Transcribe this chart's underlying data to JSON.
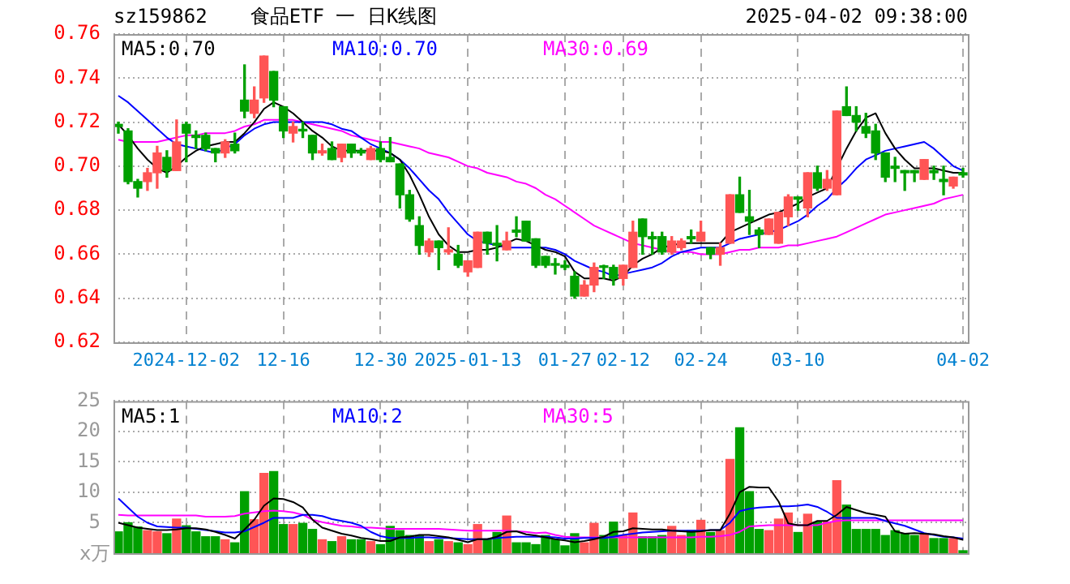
{
  "chart_data": [
    {
      "type": "candlestick",
      "title": "食品ETF 一 日K线图",
      "annotations": [
        "sz159862",
        "2025-04-02 09:38:00"
      ],
      "categories": [
        null,
        null,
        null,
        null,
        null,
        null,
        null,
        "2024-12-02",
        null,
        null,
        null,
        null,
        null,
        null,
        null,
        null,
        null,
        "12-16",
        null,
        null,
        null,
        null,
        null,
        null,
        null,
        null,
        null,
        "12-30",
        null,
        null,
        null,
        null,
        null,
        null,
        null,
        null,
        "2025-01-13",
        null,
        null,
        null,
        null,
        null,
        null,
        null,
        null,
        null,
        "01-27",
        null,
        null,
        null,
        null,
        null,
        "02-12",
        null,
        null,
        null,
        null,
        null,
        null,
        null,
        "02-24",
        null,
        null,
        null,
        null,
        null,
        null,
        null,
        null,
        null,
        "03-10",
        null,
        null,
        null,
        null,
        null,
        null,
        null,
        null,
        null,
        null,
        null,
        null,
        null,
        null,
        null,
        null,
        "04-02"
      ],
      "ohlc": [
        [
          0.719,
          0.72,
          0.715,
          0.718
        ],
        [
          0.716,
          0.717,
          0.692,
          0.693
        ],
        [
          0.693,
          0.694,
          0.686,
          0.69
        ],
        [
          0.693,
          0.699,
          0.689,
          0.697
        ],
        [
          0.697,
          0.709,
          0.69,
          0.706
        ],
        [
          0.704,
          0.707,
          0.695,
          0.698
        ],
        [
          0.698,
          0.721,
          0.698,
          0.711
        ],
        [
          0.719,
          0.72,
          0.702,
          0.715
        ],
        [
          0.714,
          0.716,
          0.708,
          0.713
        ],
        [
          0.714,
          0.715,
          0.707,
          0.708
        ],
        [
          0.708,
          0.708,
          0.702,
          0.706
        ],
        [
          0.706,
          0.712,
          0.704,
          0.711
        ],
        [
          0.71,
          0.715,
          0.706,
          0.707
        ],
        [
          0.73,
          0.746,
          0.722,
          0.725
        ],
        [
          0.724,
          0.736,
          0.722,
          0.73
        ],
        [
          0.731,
          0.75,
          0.729,
          0.75
        ],
        [
          0.743,
          0.743,
          0.727,
          0.73
        ],
        [
          0.727,
          0.727,
          0.713,
          0.716
        ],
        [
          0.715,
          0.72,
          0.711,
          0.718
        ],
        [
          0.716,
          0.72,
          0.713,
          0.716
        ],
        [
          0.714,
          0.714,
          0.703,
          0.706
        ],
        [
          0.706,
          0.71,
          0.705,
          0.707
        ],
        [
          0.708,
          0.711,
          0.703,
          0.703
        ],
        [
          0.704,
          0.71,
          0.702,
          0.71
        ],
        [
          0.71,
          0.71,
          0.704,
          0.706
        ],
        [
          0.707,
          0.708,
          0.705,
          0.706
        ],
        [
          0.703,
          0.709,
          0.703,
          0.708
        ],
        [
          0.708,
          0.711,
          0.702,
          0.703
        ],
        [
          0.704,
          0.713,
          0.702,
          0.702
        ],
        [
          0.701,
          0.701,
          0.681,
          0.687
        ],
        [
          0.687,
          0.689,
          0.675,
          0.676
        ],
        [
          0.673,
          0.677,
          0.66,
          0.664
        ],
        [
          0.661,
          0.667,
          0.659,
          0.666
        ],
        [
          0.666,
          0.666,
          0.653,
          0.663
        ],
        [
          0.661,
          0.672,
          0.66,
          0.662
        ],
        [
          0.66,
          0.664,
          0.654,
          0.655
        ],
        [
          0.652,
          0.657,
          0.65,
          0.657
        ],
        [
          0.654,
          0.67,
          0.654,
          0.67
        ],
        [
          0.67,
          0.67,
          0.66,
          0.665
        ],
        [
          0.665,
          0.673,
          0.657,
          0.664
        ],
        [
          0.662,
          0.67,
          0.662,
          0.666
        ],
        [
          0.671,
          0.677,
          0.668,
          0.67
        ],
        [
          0.675,
          0.675,
          0.666,
          0.666
        ],
        [
          0.667,
          0.667,
          0.654,
          0.655
        ],
        [
          0.659,
          0.659,
          0.654,
          0.655
        ],
        [
          0.655,
          0.658,
          0.651,
          0.655
        ],
        [
          0.655,
          0.657,
          0.653,
          0.654
        ],
        [
          0.65,
          0.652,
          0.64,
          0.641
        ],
        [
          0.641,
          0.648,
          0.641,
          0.646
        ],
        [
          0.646,
          0.656,
          0.643,
          0.654
        ],
        [
          0.654,
          0.655,
          0.649,
          0.654
        ],
        [
          0.654,
          0.655,
          0.646,
          0.649
        ],
        [
          0.649,
          0.655,
          0.646,
          0.655
        ],
        [
          0.654,
          0.675,
          0.654,
          0.67
        ],
        [
          0.676,
          0.676,
          0.66,
          0.668
        ],
        [
          0.668,
          0.67,
          0.66,
          0.667
        ],
        [
          0.668,
          0.67,
          0.66,
          0.661
        ],
        [
          0.661,
          0.668,
          0.66,
          0.666
        ],
        [
          0.663,
          0.667,
          0.662,
          0.666
        ],
        [
          0.668,
          0.671,
          0.665,
          0.667
        ],
        [
          0.666,
          0.675,
          0.666,
          0.67
        ],
        [
          0.663,
          0.663,
          0.658,
          0.66
        ],
        [
          0.66,
          0.665,
          0.655,
          0.663
        ],
        [
          0.665,
          0.687,
          0.665,
          0.687
        ],
        [
          0.687,
          0.695,
          0.679,
          0.679
        ],
        [
          0.677,
          0.689,
          0.669,
          0.675
        ],
        [
          0.671,
          0.672,
          0.663,
          0.669
        ],
        [
          0.669,
          0.676,
          0.669,
          0.676
        ],
        [
          0.665,
          0.679,
          0.665,
          0.679
        ],
        [
          0.677,
          0.687,
          0.673,
          0.686
        ],
        [
          0.686,
          0.686,
          0.68,
          0.685
        ],
        [
          0.681,
          0.697,
          0.677,
          0.697
        ],
        [
          0.697,
          0.7,
          0.689,
          0.69
        ],
        [
          0.69,
          0.698,
          0.689,
          0.694
        ],
        [
          0.687,
          0.725,
          0.687,
          0.725
        ],
        [
          0.727,
          0.736,
          0.723,
          0.723
        ],
        [
          0.723,
          0.727,
          0.716,
          0.72
        ],
        [
          0.718,
          0.724,
          0.713,
          0.715
        ],
        [
          0.716,
          0.719,
          0.703,
          0.706
        ],
        [
          0.706,
          0.706,
          0.693,
          0.695
        ],
        [
          0.7,
          0.704,
          0.693,
          0.699
        ],
        [
          0.698,
          0.698,
          0.689,
          0.697
        ],
        [
          0.698,
          0.698,
          0.693,
          0.697
        ],
        [
          0.694,
          0.703,
          0.694,
          0.703
        ],
        [
          0.698,
          0.7,
          0.694,
          0.697
        ],
        [
          0.694,
          0.7,
          0.687,
          0.693
        ],
        [
          0.691,
          0.695,
          0.69,
          0.695
        ],
        [
          0.697,
          0.699,
          0.695,
          0.696
        ]
      ],
      "colors": [
        "#00a000",
        "#00a000",
        "#00a000",
        "#ff5555",
        "#ff5555",
        "#00a000",
        "#ff5555",
        "#00a000",
        "#00a000",
        "#00a000",
        "#00a000",
        "#ff5555",
        "#00a000",
        "#00a000",
        "#ff5555",
        "#ff5555",
        "#00a000",
        "#00a000",
        "#ff5555",
        "#00a000",
        "#00a000",
        "#ff5555",
        "#00a000",
        "#ff5555",
        "#00a000",
        "#00a000",
        "#ff5555",
        "#00a000",
        "#00a000",
        "#00a000",
        "#00a000",
        "#00a000",
        "#ff5555",
        "#00a000",
        "#ff5555",
        "#00a000",
        "#ff5555",
        "#ff5555",
        "#00a000",
        "#00a000",
        "#ff5555",
        "#00a000",
        "#00a000",
        "#00a000",
        "#00a000",
        "#00a000",
        "#00a000",
        "#00a000",
        "#ff5555",
        "#ff5555",
        "#00a000",
        "#00a000",
        "#ff5555",
        "#ff5555",
        "#00a000",
        "#00a000",
        "#00a000",
        "#ff5555",
        "#ff5555",
        "#00a000",
        "#ff5555",
        "#00a000",
        "#ff5555",
        "#ff5555",
        "#00a000",
        "#00a000",
        "#00a000",
        "#ff5555",
        "#ff5555",
        "#ff5555",
        "#00a000",
        "#ff5555",
        "#00a000",
        "#ff5555",
        "#ff5555",
        "#00a000",
        "#00a000",
        "#00a000",
        "#00a000",
        "#00a000",
        "#00a000",
        "#00a000",
        "#00a000",
        "#ff5555",
        "#00a000",
        "#00a000",
        "#ff5555",
        "#00a000"
      ],
      "series": [
        {
          "name": "MA5:0.70",
          "type": "line",
          "color": "#000000",
          "values": [
            0.719,
            0.714,
            0.708,
            0.703,
            0.699,
            0.697,
            0.7,
            0.704,
            0.707,
            0.709,
            0.71,
            0.711,
            0.711,
            0.715,
            0.72,
            0.726,
            0.729,
            0.727,
            0.724,
            0.72,
            0.716,
            0.713,
            0.709,
            0.707,
            0.707,
            0.707,
            0.707,
            0.707,
            0.706,
            0.703,
            0.696,
            0.687,
            0.677,
            0.669,
            0.664,
            0.661,
            0.661,
            0.662,
            0.662,
            0.663,
            0.665,
            0.667,
            0.666,
            0.664,
            0.662,
            0.661,
            0.659,
            0.652,
            0.649,
            0.649,
            0.649,
            0.648,
            0.65,
            0.655,
            0.658,
            0.66,
            0.663,
            0.664,
            0.665,
            0.665,
            0.665,
            0.665,
            0.665,
            0.67,
            0.672,
            0.674,
            0.676,
            0.678,
            0.679,
            0.681,
            0.683,
            0.686,
            0.688,
            0.69,
            null,
            0.708,
            0.716,
            0.722,
            0.724,
            0.715,
            0.708,
            0.703,
            0.699,
            0.699,
            0.699,
            0.698,
            0.697,
            0.697
          ]
        },
        {
          "name": "MA10:0.70",
          "type": "line",
          "color": "#0000ff",
          "values": [
            0.732,
            0.729,
            0.725,
            0.721,
            0.717,
            0.713,
            0.71,
            0.709,
            0.708,
            0.707,
            0.706,
            0.708,
            0.71,
            0.714,
            0.717,
            0.719,
            0.72,
            0.72,
            0.72,
            0.72,
            0.72,
            0.72,
            0.719,
            0.717,
            0.716,
            0.713,
            0.71,
            0.708,
            0.706,
            0.703,
            0.699,
            0.694,
            0.689,
            0.685,
            0.679,
            0.674,
            0.669,
            0.666,
            0.665,
            0.664,
            0.663,
            0.663,
            0.663,
            0.663,
            0.663,
            0.662,
            0.66,
            0.657,
            0.655,
            0.653,
            0.652,
            0.65,
            0.651,
            0.652,
            0.653,
            0.654,
            0.656,
            0.659,
            0.661,
            0.662,
            0.663,
            0.663,
            0.663,
            0.665,
            0.667,
            0.668,
            0.669,
            0.67,
            0.671,
            0.673,
            0.675,
            0.678,
            0.682,
            0.685,
            0.69,
            0.694,
            0.699,
            0.703,
            0.705,
            0.707,
            0.708,
            0.709,
            0.71,
            0.711,
            0.708,
            0.704,
            0.7,
            0.698
          ]
        },
        {
          "name": "MA30:0.69",
          "type": "line",
          "color": "#ff00ff",
          "values": [
            0.712,
            0.711,
            0.711,
            0.711,
            0.711,
            0.712,
            0.713,
            0.714,
            0.714,
            0.715,
            0.715,
            0.715,
            0.716,
            0.718,
            0.719,
            0.721,
            0.721,
            0.721,
            0.721,
            0.72,
            0.719,
            0.718,
            0.717,
            0.716,
            0.714,
            0.713,
            0.712,
            0.711,
            0.711,
            0.71,
            0.709,
            0.708,
            0.706,
            0.705,
            0.704,
            0.702,
            0.7,
            0.699,
            0.697,
            0.696,
            0.695,
            0.693,
            0.692,
            0.69,
            0.687,
            0.685,
            0.682,
            0.679,
            0.676,
            0.673,
            0.671,
            0.669,
            0.667,
            0.665,
            0.664,
            0.663,
            0.662,
            0.661,
            0.661,
            0.661,
            0.66,
            0.66,
            0.66,
            0.661,
            0.662,
            0.662,
            0.663,
            0.663,
            0.663,
            0.664,
            0.664,
            0.665,
            0.666,
            0.667,
            0.668,
            0.67,
            0.672,
            0.674,
            0.676,
            0.678,
            0.679,
            0.68,
            0.681,
            0.682,
            0.683,
            0.685,
            0.686,
            0.687
          ]
        }
      ],
      "ylim": [
        0.62,
        0.76
      ],
      "yticks": [
        0.62,
        0.64,
        0.66,
        0.68,
        {
          "value": 0.7,
          "label": "0.70"
        },
        0.72,
        0.74,
        0.76
      ],
      "grid": true,
      "legend": "top left"
    },
    {
      "type": "bar",
      "ylabel": "x万",
      "tick_labels": "y",
      "categories": [
        null,
        null,
        null,
        null,
        null,
        null,
        null,
        null,
        null,
        null,
        null,
        null,
        null,
        null,
        null,
        null,
        null,
        null,
        null,
        null,
        null,
        null,
        null,
        null,
        null,
        null,
        null,
        null,
        null,
        null,
        null,
        null,
        null,
        null,
        null,
        null,
        null,
        null,
        null,
        null,
        null,
        null,
        null,
        null,
        null,
        null,
        null,
        null,
        null,
        null,
        null,
        null,
        null,
        null,
        null,
        null,
        null,
        null,
        null,
        null,
        null,
        null,
        null,
        null,
        null,
        null,
        null,
        null,
        null,
        null,
        null,
        null,
        null,
        null,
        null,
        null,
        null,
        null,
        null,
        null,
        null,
        null,
        null,
        null,
        null,
        null,
        null,
        null
      ],
      "series": [
        {
          "type": "bar",
          "values": [
            3.5,
            5.0,
            4.3,
            3.7,
            3.5,
            3.2,
            5.6,
            4.5,
            3.5,
            2.7,
            2.7,
            2.2,
            1.7,
            10.1,
            5.5,
            13.1,
            13.4,
            4.7,
            4.7,
            4.9,
            3.9,
            2.2,
            1.9,
            2.7,
            2.2,
            2.2,
            1.9,
            1.4,
            4.4,
            3.7,
            2.9,
            2.9,
            1.9,
            2.2,
            1.9,
            1.7,
            1.4,
            4.7,
            2.2,
            3.4,
            6.1,
            1.7,
            1.7,
            1.4,
            2.9,
            2.2,
            1.2,
            3.2,
            1.7,
            4.9,
            2.9,
            5.1,
            2.9,
            6.6,
            2.7,
            2.7,
            2.9,
            4.4,
            2.9,
            3.7,
            5.4,
            3.4,
            3.7,
            15.4,
            20.6,
            10.1,
            3.9,
            3.7,
            5.6,
            6.6,
            3.4,
            6.4,
            5.1,
            5.1,
            11.9,
            7.9,
            3.9,
            3.9,
            3.9,
            2.9,
            3.7,
            3.2,
            2.9,
            3.2,
            2.4,
            2.4,
            2.4,
            0.4
          ],
          "colors": [
            "#00a000",
            "#00a000",
            "#00a000",
            "#ff5555",
            "#ff5555",
            "#00a000",
            "#ff5555",
            "#00a000",
            "#00a000",
            "#00a000",
            "#00a000",
            "#ff5555",
            "#00a000",
            "#00a000",
            "#ff5555",
            "#ff5555",
            "#00a000",
            "#00a000",
            "#ff5555",
            "#00a000",
            "#00a000",
            "#ff5555",
            "#00a000",
            "#ff5555",
            "#00a000",
            "#00a000",
            "#ff5555",
            "#00a000",
            "#00a000",
            "#00a000",
            "#00a000",
            "#00a000",
            "#ff5555",
            "#00a000",
            "#ff5555",
            "#00a000",
            "#ff5555",
            "#ff5555",
            "#00a000",
            "#00a000",
            "#ff5555",
            "#00a000",
            "#00a000",
            "#00a000",
            "#00a000",
            "#00a000",
            "#00a000",
            "#00a000",
            "#ff5555",
            "#ff5555",
            "#00a000",
            "#00a000",
            "#ff5555",
            "#ff5555",
            "#00a000",
            "#00a000",
            "#00a000",
            "#ff5555",
            "#ff5555",
            "#00a000",
            "#ff5555",
            "#00a000",
            "#ff5555",
            "#ff5555",
            "#00a000",
            "#00a000",
            "#00a000",
            "#ff5555",
            "#ff5555",
            "#ff5555",
            "#00a000",
            "#ff5555",
            "#00a000",
            "#ff5555",
            "#ff5555",
            "#00a000",
            "#00a000",
            "#00a000",
            "#00a000",
            "#00a000",
            "#00a000",
            "#00a000",
            "#00a000",
            "#ff5555",
            "#00a000",
            "#00a000",
            "#ff5555",
            "#00a000"
          ]
        },
        {
          "name": "MA5:1",
          "type": "line",
          "color": "#000000",
          "values": [
            5.0,
            4.6,
            4.2,
            4.0,
            3.8,
            3.8,
            3.9,
            4.1,
            4.1,
            3.9,
            3.5,
            3.0,
            2.4,
            3.9,
            5.5,
            7.8,
            9.0,
            8.9,
            8.4,
            7.5,
            5.5,
            4.2,
            3.7,
            3.2,
            2.9,
            2.5,
            2.3,
            2.0,
            2.0,
            2.6,
            2.7,
            3.0,
            3.0,
            2.8,
            2.6,
            2.2,
            1.8,
            2.3,
            2.3,
            2.7,
            3.5,
            3.6,
            3.1,
            2.9,
            2.6,
            2.3,
            2.1,
            1.8,
            2.0,
            2.3,
            2.7,
            3.5,
            3.6,
            4.1,
            4.0,
            3.9,
            3.9,
            3.7,
            3.6,
            3.5,
            3.6,
            3.8,
            3.8,
            6.5,
            10.0,
            10.9,
            10.8,
            10.8,
            8.5,
            4.9,
            4.6,
            4.6,
            5.3,
            5.3,
            6.3,
            7.6,
            7.1,
            6.6,
            6.3,
            6.0,
            3.6,
            3.2,
            3.3,
            3.2,
            3.1,
            2.8,
            2.6,
            2.2
          ]
        },
        {
          "name": "MA10:2",
          "type": "line",
          "color": "#0000ff",
          "values": [
            9.0,
            7.5,
            6.0,
            5.0,
            4.4,
            4.3,
            4.2,
            4.2,
            4.0,
            3.8,
            3.6,
            3.4,
            3.4,
            3.6,
            4.3,
            5.0,
            5.8,
            5.8,
            5.8,
            6.3,
            6.3,
            6.1,
            5.6,
            5.3,
            5.0,
            4.5,
            3.5,
            2.8,
            2.5,
            2.5,
            2.5,
            2.6,
            2.6,
            2.5,
            2.5,
            2.4,
            2.3,
            2.3,
            2.3,
            2.5,
            2.6,
            2.7,
            2.7,
            2.7,
            2.7,
            2.6,
            2.4,
            2.4,
            2.5,
            2.5,
            2.5,
            2.7,
            3.0,
            3.2,
            3.4,
            3.5,
            3.6,
            3.7,
            3.7,
            3.7,
            3.7,
            3.8,
            3.8,
            5.0,
            6.9,
            7.3,
            7.5,
            7.6,
            7.7,
            7.7,
            7.8,
            8.0,
            7.6,
            6.8,
            5.8,
            5.8,
            5.8,
            5.8,
            5.8,
            5.3,
            4.9,
            4.5,
            3.9,
            3.3,
            3.0,
            2.7,
            2.6,
            2.4
          ]
        },
        {
          "name": "MA30:5",
          "type": "line",
          "color": "#ff00ff",
          "values": [
            6.3,
            6.2,
            6.2,
            6.2,
            6.2,
            6.2,
            6.2,
            6.2,
            6.2,
            6.0,
            6.0,
            6.0,
            6.1,
            6.5,
            6.7,
            6.9,
            7.0,
            6.9,
            6.7,
            6.3,
            5.5,
            5.1,
            4.8,
            4.5,
            4.4,
            4.2,
            4.2,
            4.1,
            4.0,
            4.0,
            4.0,
            4.0,
            4.0,
            4.0,
            3.9,
            3.8,
            3.7,
            3.7,
            3.7,
            3.7,
            3.7,
            3.6,
            3.5,
            3.3,
            3.4,
            3.0,
            2.7,
            2.6,
            2.6,
            2.6,
            2.6,
            2.6,
            2.6,
            2.6,
            2.6,
            2.6,
            2.6,
            2.6,
            2.6,
            2.6,
            2.7,
            2.7,
            2.8,
            3.0,
            3.5,
            4.4,
            4.5,
            4.6,
            4.6,
            4.6,
            4.6,
            4.6,
            4.6,
            5.0,
            5.3,
            5.4,
            5.4,
            5.4,
            5.4,
            5.4,
            5.4,
            5.4,
            5.4,
            5.4,
            5.4,
            5.4,
            5.4,
            5.4
          ]
        }
      ],
      "ylim": [
        0,
        25
      ],
      "yticks": [
        5,
        10,
        15,
        20,
        25
      ],
      "grid": true,
      "legend": "top left"
    }
  ]
}
